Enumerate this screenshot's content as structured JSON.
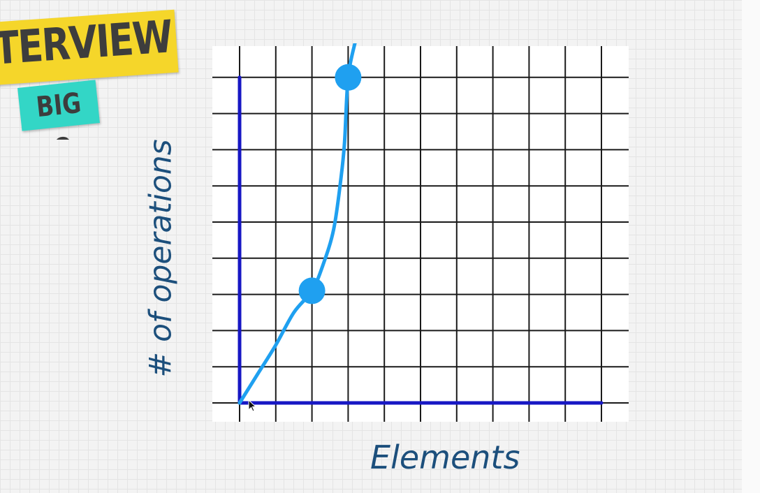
{
  "badge": {
    "title": "INTERVIEW",
    "subtitle": "BIG O",
    "colors": {
      "title_bg": "#f5d62a",
      "subtitle_bg": "#33d6c6",
      "text": "#3d3d3d"
    }
  },
  "chart_data": {
    "type": "line",
    "title": "",
    "xlabel": "Elements",
    "ylabel": "# of operations",
    "xlim": [
      0,
      10
    ],
    "ylim": [
      0,
      9
    ],
    "grid": true,
    "series": [
      {
        "x": [
          0,
          0.5,
          1,
          1.5,
          2,
          2.3,
          2.6,
          2.8,
          2.9,
          3,
          3.2
        ],
        "y": [
          0,
          0.8,
          1.6,
          2.5,
          3.1,
          3.8,
          4.8,
          6.2,
          7.2,
          9,
          10
        ]
      }
    ],
    "points": [
      {
        "x": 2,
        "y": 3.1
      },
      {
        "x": 3,
        "y": 9
      }
    ],
    "colors": {
      "curve": "#1fa0f0",
      "axes": "#1717c4",
      "grid": "#1a1a1a",
      "plot_bg": "#ffffff",
      "labels": "#1c4f7c"
    }
  }
}
